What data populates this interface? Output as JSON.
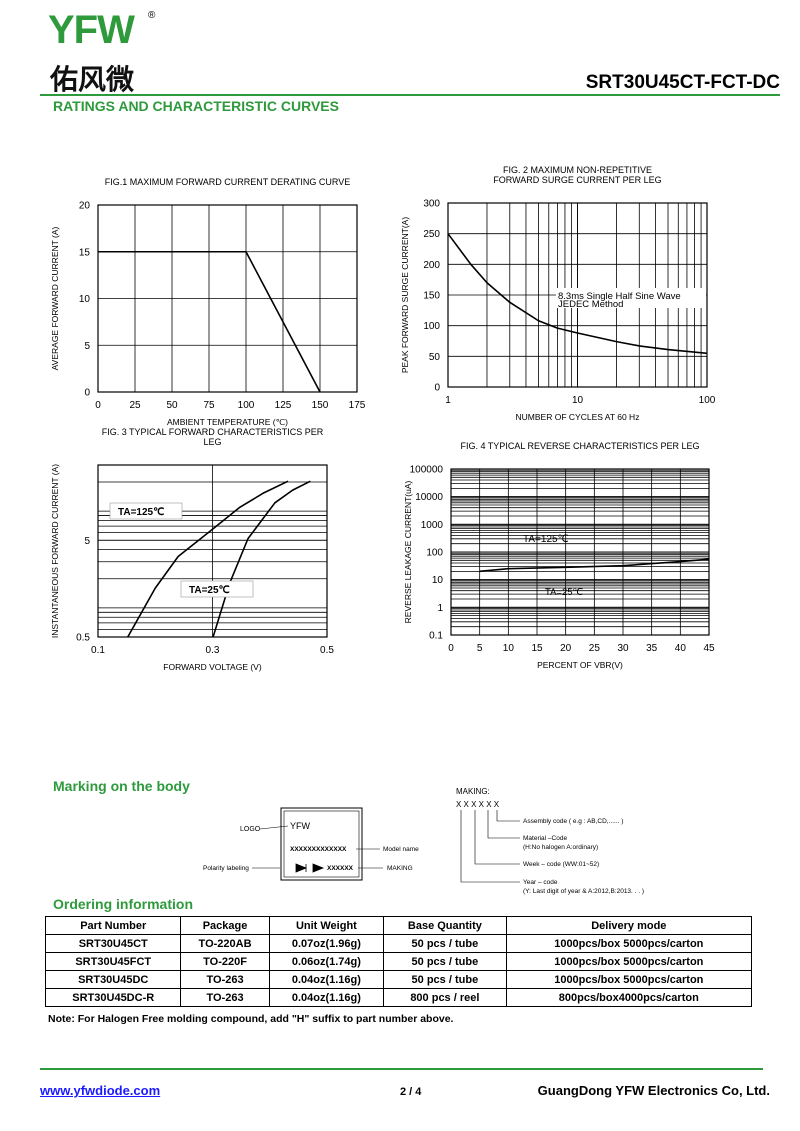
{
  "header": {
    "logo": "YFW",
    "logo_cn": "佑风微",
    "part": "SRT30U45CT-FCT-DC",
    "section": "RATINGS AND CHARACTERISTIC CURVES"
  },
  "chart_data": [
    {
      "type": "line",
      "title": [
        "FIG.1 MAXIMUM FORWARD CURRENT DERATING CURVE"
      ],
      "x_label": "AMBIENT TEMPERATURE (℃)",
      "y_label": "AVERAGE FORWARD CURRENT (A)",
      "xlim": [
        0,
        175
      ],
      "xticks": [
        0,
        25,
        50,
        75,
        100,
        125,
        150,
        175
      ],
      "ylim": [
        0,
        20
      ],
      "yticks": [
        0,
        5,
        10,
        15,
        20
      ],
      "grid": true,
      "series": [
        {
          "color": "#000000",
          "x": [
            0,
            100,
            150
          ],
          "values": [
            15,
            15,
            0
          ]
        }
      ]
    },
    {
      "type": "line",
      "title": [
        "FIG. 2 MAXIMUM NON-REPETITIVE",
        "FORWARD SURGE CURRENT PER LEG"
      ],
      "x_label": "NUMBER OF CYCLES AT 60 Hz",
      "y_label": "PEAK FORWARD SURGE CURRENT(A)",
      "xlim": [
        1,
        100
      ],
      "xticks": [
        1,
        10,
        100
      ],
      "xlog": true,
      "ylim": [
        0,
        300
      ],
      "yticks": [
        0,
        50,
        100,
        150,
        200,
        250,
        300
      ],
      "grid": true,
      "series": [
        {
          "color": "#000000",
          "x": [
            1,
            1.5,
            2,
            3,
            5,
            7,
            10,
            20,
            30,
            50,
            100
          ],
          "values": [
            250,
            200,
            170,
            138,
            108,
            96,
            88,
            74,
            67,
            61,
            55
          ]
        }
      ],
      "annotations": [
        "8.3ms Single Half Sine Wave",
        "JEDEC Method"
      ]
    },
    {
      "type": "line",
      "title": [
        "FIG. 3 TYPICAL FORWARD CHARACTERISTICS PER",
        "LEG"
      ],
      "x_label": "FORWARD VOLTAGE (V)",
      "y_label": "INSTANTANEOUS FORWARD CURRENT (A)",
      "xlim": [
        0.1,
        0.5
      ],
      "xticks": [
        0.1,
        0.3,
        0.5
      ],
      "ylim": [
        0.5,
        30
      ],
      "yticks": [
        0.5,
        5
      ],
      "ylog": true,
      "grid": true,
      "series": [
        {
          "name": "TA=125℃",
          "color": "#000000",
          "x": [
            0.152,
            0.2,
            0.24,
            0.3,
            0.348,
            0.39,
            0.432
          ],
          "values": [
            0.5,
            1.6,
            3.4,
            6.5,
            11,
            15.5,
            20.4
          ]
        },
        {
          "name": "TA=25℃",
          "color": "#000000",
          "x": [
            0.301,
            0.33,
            0.362,
            0.409,
            0.44,
            0.471
          ],
          "values": [
            0.5,
            1.8,
            5.2,
            12.2,
            16.5,
            20.4
          ]
        }
      ]
    },
    {
      "type": "line",
      "title": [
        "FIG. 4 TYPICAL REVERSE CHARACTERISTICS PER LEG"
      ],
      "x_label": "PERCENT OF VBR(V)",
      "y_label": "REVERSE LEAKAGE CURRENT(uA)",
      "xlim": [
        0,
        45
      ],
      "xticks": [
        0,
        5,
        10,
        15,
        20,
        25,
        30,
        35,
        40,
        45
      ],
      "ylim": [
        0.1,
        100000
      ],
      "yticks": [
        0.1,
        1,
        10,
        100,
        1000,
        10000,
        100000
      ],
      "ylog": true,
      "grid": true,
      "series": [
        {
          "name": "TA=125℃",
          "color": "#000000",
          "x": [
            5,
            10,
            20,
            30,
            40,
            45
          ],
          "values": [
            20,
            25,
            28,
            32,
            45,
            55
          ]
        }
      ],
      "annotations": [
        "TA=25℃"
      ]
    }
  ],
  "marking": {
    "title": "Marking on the body",
    "logo_label": "LOGO",
    "logo_text": "YFW",
    "model_code": "XXXXXXXXXXXXX",
    "model_label": "Model name",
    "polarity_label": "Polarity labeling",
    "making_code": "XXXXXX",
    "making_label": "MAKING",
    "legend_title": "MAKING:",
    "legend_code": "X X X X X X",
    "assembly": "Assembly code ( e.g : AB,CD,...... )",
    "material": "Material –Code",
    "material_note": "(H:No halogen  A:ordinary)",
    "week": "Week – code (WW:01~52)",
    "year": "Year – code",
    "year_note": "(Y: Last digit of year & A:2012,B:2013. . . )"
  },
  "ordering": {
    "title": "Ordering information",
    "columns": [
      "Part Number",
      "Package",
      "Unit Weight",
      "Base Quantity",
      "Delivery mode"
    ],
    "rows": [
      [
        "SRT30U45CT",
        "TO-220AB",
        "0.07oz(1.96g)",
        "50 pcs / tube",
        "1000pcs/box 5000pcs/carton"
      ],
      [
        "SRT30U45FCT",
        "TO-220F",
        "0.06oz(1.74g)",
        "50 pcs / tube",
        "1000pcs/box 5000pcs/carton"
      ],
      [
        "SRT30U45DC",
        "TO-263",
        "0.04oz(1.16g)",
        "50 pcs / tube",
        "1000pcs/box 5000pcs/carton"
      ],
      [
        "SRT30U45DC-R",
        "TO-263",
        "0.04oz(1.16g)",
        "800 pcs / reel",
        "800pcs/box4000pcs/carton"
      ]
    ],
    "note": "Note: For Halogen Free molding compound, add \"H\" suffix to part number above."
  },
  "footer": {
    "url": "www.yfwdiode.com",
    "page": "2 / 4",
    "company": "GuangDong YFW Electronics Co, Ltd."
  }
}
